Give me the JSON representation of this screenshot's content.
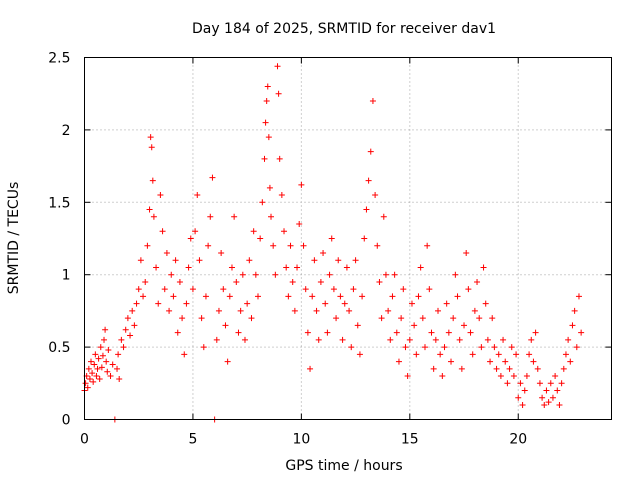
{
  "chart_data": {
    "type": "scatter",
    "title": "Day 184 of 2025, SRMTID for receiver dav1",
    "xlabel": "GPS time / hours",
    "ylabel": "SRMTID / TECUs",
    "xlim": [
      0,
      24.3
    ],
    "ylim": [
      0,
      2.5
    ],
    "xticks": [
      0,
      5,
      10,
      15,
      20
    ],
    "xtick_labels": [
      "0",
      "5",
      "10",
      "15",
      "20"
    ],
    "yticks": [
      0,
      0.5,
      1,
      1.5,
      2,
      2.5
    ],
    "ytick_labels": [
      "0",
      "0.5",
      "1",
      "1.5",
      "2",
      "2.5"
    ],
    "grid": true,
    "marker": "+",
    "color": "#ff0000",
    "series": [
      {
        "name": "SRMTID",
        "points": [
          [
            0.0,
            0.2
          ],
          [
            0.05,
            0.25
          ],
          [
            0.1,
            0.3
          ],
          [
            0.15,
            0.22
          ],
          [
            0.2,
            0.35
          ],
          [
            0.25,
            0.28
          ],
          [
            0.3,
            0.4
          ],
          [
            0.35,
            0.32
          ],
          [
            0.4,
            0.26
          ],
          [
            0.45,
            0.38
          ],
          [
            0.5,
            0.45
          ],
          [
            0.55,
            0.3
          ],
          [
            0.6,
            0.35
          ],
          [
            0.65,
            0.42
          ],
          [
            0.7,
            0.28
          ],
          [
            0.75,
            0.5
          ],
          [
            0.8,
            0.36
          ],
          [
            0.85,
            0.44
          ],
          [
            0.9,
            0.55
          ],
          [
            0.95,
            0.62
          ],
          [
            1.0,
            0.4
          ],
          [
            1.05,
            0.33
          ],
          [
            1.1,
            0.48
          ],
          [
            1.2,
            0.3
          ],
          [
            1.3,
            0.38
          ],
          [
            1.4,
            0.0
          ],
          [
            1.5,
            0.35
          ],
          [
            1.55,
            0.45
          ],
          [
            1.6,
            0.28
          ],
          [
            1.7,
            0.55
          ],
          [
            1.8,
            0.5
          ],
          [
            1.9,
            0.62
          ],
          [
            2.0,
            0.7
          ],
          [
            2.1,
            0.58
          ],
          [
            2.2,
            0.75
          ],
          [
            2.3,
            0.65
          ],
          [
            2.4,
            0.8
          ],
          [
            2.5,
            0.9
          ],
          [
            2.6,
            1.1
          ],
          [
            2.7,
            0.85
          ],
          [
            2.8,
            0.95
          ],
          [
            2.9,
            1.2
          ],
          [
            3.0,
            1.45
          ],
          [
            3.05,
            1.95
          ],
          [
            3.1,
            1.88
          ],
          [
            3.15,
            1.65
          ],
          [
            3.2,
            1.4
          ],
          [
            3.3,
            1.05
          ],
          [
            3.4,
            0.8
          ],
          [
            3.5,
            1.55
          ],
          [
            3.6,
            1.3
          ],
          [
            3.7,
            0.9
          ],
          [
            3.8,
            1.15
          ],
          [
            3.9,
            0.75
          ],
          [
            4.0,
            1.0
          ],
          [
            4.1,
            0.85
          ],
          [
            4.2,
            1.1
          ],
          [
            4.3,
            0.6
          ],
          [
            4.4,
            0.95
          ],
          [
            4.5,
            0.7
          ],
          [
            4.6,
            0.45
          ],
          [
            4.7,
            0.8
          ],
          [
            4.8,
            1.05
          ],
          [
            4.9,
            1.25
          ],
          [
            5.0,
            0.9
          ],
          [
            5.1,
            1.3
          ],
          [
            5.2,
            1.55
          ],
          [
            5.3,
            1.1
          ],
          [
            5.4,
            0.7
          ],
          [
            5.5,
            0.5
          ],
          [
            5.6,
            0.85
          ],
          [
            5.7,
            1.2
          ],
          [
            5.8,
            1.4
          ],
          [
            5.9,
            1.67
          ],
          [
            6.0,
            0.0
          ],
          [
            6.1,
            0.55
          ],
          [
            6.2,
            0.75
          ],
          [
            6.3,
            1.15
          ],
          [
            6.4,
            0.9
          ],
          [
            6.5,
            0.65
          ],
          [
            6.6,
            0.4
          ],
          [
            6.7,
            0.85
          ],
          [
            6.8,
            1.05
          ],
          [
            6.9,
            1.4
          ],
          [
            7.0,
            0.95
          ],
          [
            7.1,
            0.6
          ],
          [
            7.2,
            0.75
          ],
          [
            7.3,
            1.0
          ],
          [
            7.4,
            0.55
          ],
          [
            7.5,
            0.8
          ],
          [
            7.6,
            1.1
          ],
          [
            7.7,
            0.7
          ],
          [
            7.8,
            1.3
          ],
          [
            7.9,
            1.0
          ],
          [
            8.0,
            0.85
          ],
          [
            8.1,
            1.25
          ],
          [
            8.2,
            1.5
          ],
          [
            8.3,
            1.8
          ],
          [
            8.35,
            2.05
          ],
          [
            8.4,
            2.2
          ],
          [
            8.45,
            2.3
          ],
          [
            8.5,
            1.95
          ],
          [
            8.55,
            1.6
          ],
          [
            8.6,
            1.4
          ],
          [
            8.7,
            1.2
          ],
          [
            8.8,
            1.0
          ],
          [
            8.9,
            2.44
          ],
          [
            8.95,
            2.25
          ],
          [
            9.0,
            1.8
          ],
          [
            9.1,
            1.55
          ],
          [
            9.2,
            1.3
          ],
          [
            9.3,
            1.05
          ],
          [
            9.4,
            0.85
          ],
          [
            9.5,
            1.2
          ],
          [
            9.6,
            0.95
          ],
          [
            9.7,
            0.75
          ],
          [
            9.8,
            1.05
          ],
          [
            9.9,
            1.35
          ],
          [
            10.0,
            1.62
          ],
          [
            10.1,
            1.2
          ],
          [
            10.2,
            0.9
          ],
          [
            10.3,
            0.6
          ],
          [
            10.4,
            0.35
          ],
          [
            10.5,
            0.85
          ],
          [
            10.6,
            1.1
          ],
          [
            10.7,
            0.75
          ],
          [
            10.8,
            0.55
          ],
          [
            10.9,
            0.95
          ],
          [
            11.0,
            1.15
          ],
          [
            11.1,
            0.8
          ],
          [
            11.2,
            0.6
          ],
          [
            11.3,
            1.0
          ],
          [
            11.4,
            1.25
          ],
          [
            11.5,
            0.9
          ],
          [
            11.6,
            0.7
          ],
          [
            11.7,
            1.1
          ],
          [
            11.8,
            0.85
          ],
          [
            11.9,
            0.55
          ],
          [
            12.0,
            0.8
          ],
          [
            12.1,
            1.05
          ],
          [
            12.2,
            0.75
          ],
          [
            12.3,
            0.5
          ],
          [
            12.4,
            0.9
          ],
          [
            12.5,
            1.1
          ],
          [
            12.6,
            0.65
          ],
          [
            12.7,
            0.45
          ],
          [
            12.8,
            0.85
          ],
          [
            12.9,
            1.25
          ],
          [
            13.0,
            1.45
          ],
          [
            13.1,
            1.65
          ],
          [
            13.2,
            1.85
          ],
          [
            13.3,
            2.2
          ],
          [
            13.4,
            1.55
          ],
          [
            13.5,
            1.2
          ],
          [
            13.6,
            0.95
          ],
          [
            13.7,
            0.7
          ],
          [
            13.8,
            1.4
          ],
          [
            13.9,
            1.0
          ],
          [
            14.0,
            0.75
          ],
          [
            14.1,
            0.55
          ],
          [
            14.2,
            0.85
          ],
          [
            14.3,
            1.0
          ],
          [
            14.4,
            0.6
          ],
          [
            14.5,
            0.4
          ],
          [
            14.6,
            0.7
          ],
          [
            14.7,
            0.9
          ],
          [
            14.8,
            0.5
          ],
          [
            14.9,
            0.3
          ],
          [
            15.0,
            0.55
          ],
          [
            15.1,
            0.8
          ],
          [
            15.2,
            0.65
          ],
          [
            15.3,
            0.45
          ],
          [
            15.4,
            0.85
          ],
          [
            15.5,
            1.05
          ],
          [
            15.6,
            0.7
          ],
          [
            15.7,
            0.5
          ],
          [
            15.8,
            1.2
          ],
          [
            15.9,
            0.9
          ],
          [
            16.0,
            0.6
          ],
          [
            16.1,
            0.35
          ],
          [
            16.2,
            0.55
          ],
          [
            16.3,
            0.75
          ],
          [
            16.4,
            0.45
          ],
          [
            16.5,
            0.3
          ],
          [
            16.6,
            0.5
          ],
          [
            16.7,
            0.8
          ],
          [
            16.8,
            0.6
          ],
          [
            16.9,
            0.4
          ],
          [
            17.0,
            0.7
          ],
          [
            17.1,
            1.0
          ],
          [
            17.2,
            0.85
          ],
          [
            17.3,
            0.55
          ],
          [
            17.4,
            0.35
          ],
          [
            17.5,
            0.65
          ],
          [
            17.6,
            1.15
          ],
          [
            17.7,
            0.9
          ],
          [
            17.8,
            0.6
          ],
          [
            17.9,
            0.45
          ],
          [
            18.0,
            0.75
          ],
          [
            18.1,
            0.95
          ],
          [
            18.2,
            0.7
          ],
          [
            18.3,
            0.5
          ],
          [
            18.4,
            1.05
          ],
          [
            18.5,
            0.8
          ],
          [
            18.6,
            0.55
          ],
          [
            18.7,
            0.4
          ],
          [
            18.8,
            0.7
          ],
          [
            18.9,
            0.5
          ],
          [
            19.0,
            0.35
          ],
          [
            19.1,
            0.45
          ],
          [
            19.2,
            0.3
          ],
          [
            19.3,
            0.55
          ],
          [
            19.4,
            0.4
          ],
          [
            19.5,
            0.25
          ],
          [
            19.6,
            0.35
          ],
          [
            19.7,
            0.5
          ],
          [
            19.8,
            0.3
          ],
          [
            19.9,
            0.45
          ],
          [
            20.0,
            0.15
          ],
          [
            20.1,
            0.25
          ],
          [
            20.2,
            0.1
          ],
          [
            20.3,
            0.2
          ],
          [
            20.4,
            0.3
          ],
          [
            20.5,
            0.45
          ],
          [
            20.6,
            0.55
          ],
          [
            20.7,
            0.4
          ],
          [
            20.8,
            0.6
          ],
          [
            20.9,
            0.35
          ],
          [
            21.0,
            0.25
          ],
          [
            21.1,
            0.15
          ],
          [
            21.2,
            0.1
          ],
          [
            21.3,
            0.2
          ],
          [
            21.4,
            0.12
          ],
          [
            21.5,
            0.25
          ],
          [
            21.6,
            0.15
          ],
          [
            21.7,
            0.3
          ],
          [
            21.8,
            0.2
          ],
          [
            21.9,
            0.1
          ],
          [
            22.0,
            0.25
          ],
          [
            22.1,
            0.35
          ],
          [
            22.2,
            0.45
          ],
          [
            22.3,
            0.55
          ],
          [
            22.4,
            0.4
          ],
          [
            22.5,
            0.65
          ],
          [
            22.6,
            0.75
          ],
          [
            22.7,
            0.5
          ],
          [
            22.8,
            0.85
          ],
          [
            22.9,
            0.6
          ]
        ]
      }
    ]
  }
}
